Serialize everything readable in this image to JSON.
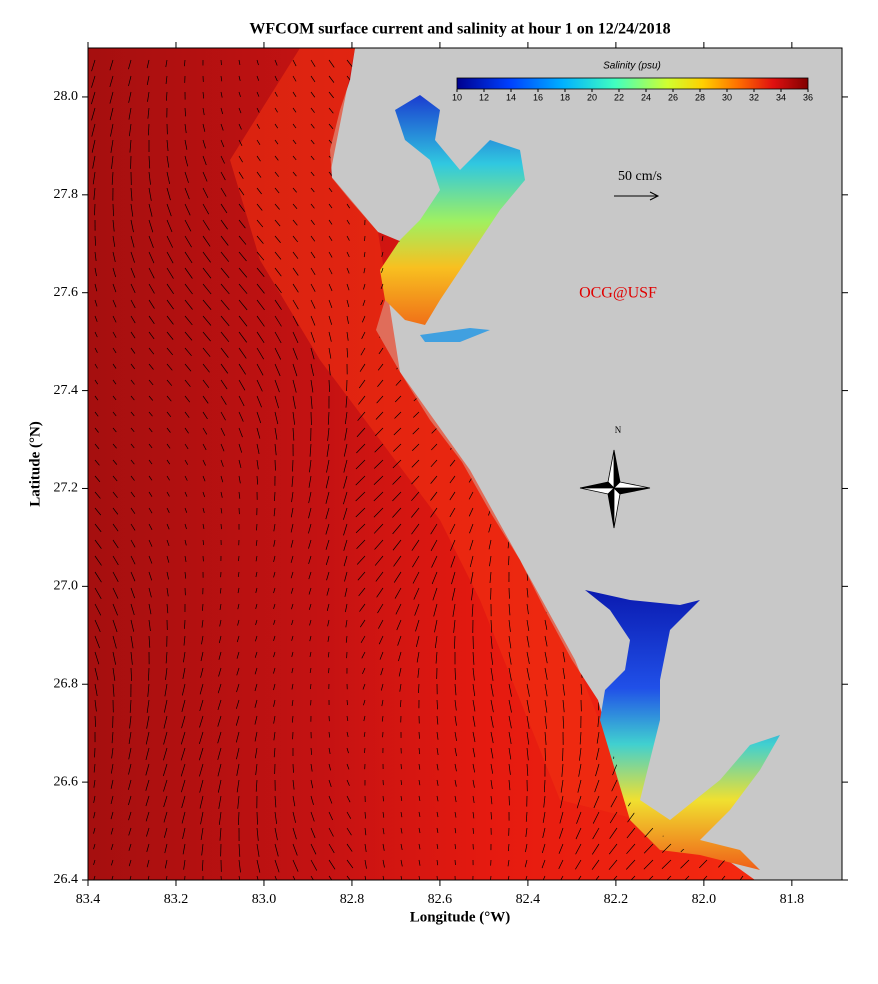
{
  "title": "WFCOM surface current and salinity at hour 1 on 12/24/2018",
  "x_axis": {
    "label": "Longitude (°W)",
    "lim": [
      83.4,
      81.686
    ],
    "ticks": [
      83.4,
      83.2,
      {
        "value": 83,
        "label": "83.0"
      },
      82.8,
      82.6,
      82.4,
      82.2,
      {
        "value": 82,
        "label": "82.0"
      },
      81.8
    ]
  },
  "y_axis": {
    "label": "Latitude (°N)",
    "lim": [
      26.4,
      28.1
    ],
    "ticks": [
      {
        "value": 28,
        "label": "28.0"
      },
      27.8,
      27.6,
      27.4,
      27.2,
      {
        "value": 27,
        "label": "27.0"
      },
      26.8,
      26.6,
      26.4
    ]
  },
  "colorbar": {
    "label": "Salinity (psu)",
    "lim": [
      10,
      36
    ],
    "ticks": [
      10,
      12,
      14,
      16,
      18,
      20,
      22,
      24,
      26,
      28,
      30,
      32,
      34,
      36
    ]
  },
  "scale_label": "50 cm/s",
  "credit": "OCG@USF",
  "compass_label": "N"
}
